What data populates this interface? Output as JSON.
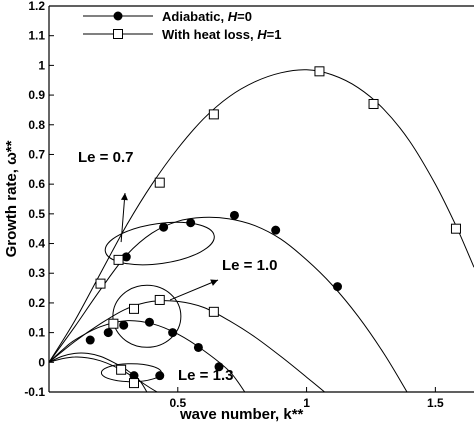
{
  "chart_data": {
    "type": "line",
    "xlabel": "wave number, k**",
    "ylabel": "Growth rate, ω**",
    "xlim": [
      0,
      1.65
    ],
    "ylim": [
      -0.1,
      1.2
    ],
    "xticks": [
      {
        "value": 0.5,
        "label": "0.5"
      },
      {
        "value": 1.0,
        "label": "1"
      },
      {
        "value": 1.5,
        "label": "1.5"
      }
    ],
    "yticks": [
      {
        "value": -0.1,
        "label": "-0.1"
      },
      {
        "value": 0.0,
        "label": "0"
      },
      {
        "value": 0.1,
        "label": "0.1"
      },
      {
        "value": 0.2,
        "label": "0.2"
      },
      {
        "value": 0.3,
        "label": "0.3"
      },
      {
        "value": 0.4,
        "label": "0.4"
      },
      {
        "value": 0.5,
        "label": "0.5"
      },
      {
        "value": 0.6,
        "label": "0.6"
      },
      {
        "value": 0.7,
        "label": "0.7"
      },
      {
        "value": 0.8,
        "label": "0.8"
      },
      {
        "value": 0.9,
        "label": "0.9"
      },
      {
        "value": 1.0,
        "label": "1"
      },
      {
        "value": 1.1,
        "label": "1.1"
      },
      {
        "value": 1.2,
        "label": "1.2"
      }
    ],
    "grid": false,
    "legend": {
      "position": "top-left",
      "entries": [
        {
          "series": "Adiabatic",
          "text": "Adiabatic, ",
          "italic": "H",
          "suffix": "=0",
          "marker": "filled-circle"
        },
        {
          "series": "HeatLoss",
          "text": "With heat loss, ",
          "italic": "H",
          "suffix": "=1",
          "marker": "open-square"
        }
      ]
    },
    "series": [
      {
        "name": "Adiabatic",
        "group": "Le = 0.7",
        "marker": "filled-circle",
        "curve": [
          [
            0,
            0
          ],
          [
            0.1,
            0.12
          ],
          [
            0.2,
            0.245
          ],
          [
            0.3,
            0.36
          ],
          [
            0.4,
            0.435
          ],
          [
            0.5,
            0.475
          ],
          [
            0.6,
            0.488
          ],
          [
            0.7,
            0.483
          ],
          [
            0.8,
            0.46
          ],
          [
            0.9,
            0.415
          ],
          [
            1.0,
            0.345
          ],
          [
            1.1,
            0.26
          ],
          [
            1.2,
            0.155
          ],
          [
            1.3,
            0.03
          ],
          [
            1.39,
            -0.1
          ]
        ],
        "points": [
          [
            0.3,
            0.355
          ],
          [
            0.445,
            0.455
          ],
          [
            0.55,
            0.47
          ],
          [
            0.72,
            0.495
          ],
          [
            0.88,
            0.445
          ],
          [
            1.12,
            0.255
          ]
        ]
      },
      {
        "name": "HeatLoss",
        "group": "Le = 0.7",
        "marker": "open-square",
        "curve": [
          [
            0,
            0
          ],
          [
            0.1,
            0.14
          ],
          [
            0.2,
            0.3
          ],
          [
            0.3,
            0.46
          ],
          [
            0.4,
            0.6
          ],
          [
            0.5,
            0.72
          ],
          [
            0.6,
            0.82
          ],
          [
            0.7,
            0.895
          ],
          [
            0.8,
            0.945
          ],
          [
            0.9,
            0.975
          ],
          [
            1.0,
            0.985
          ],
          [
            1.1,
            0.968
          ],
          [
            1.2,
            0.925
          ],
          [
            1.3,
            0.852
          ],
          [
            1.4,
            0.745
          ],
          [
            1.5,
            0.6
          ],
          [
            1.58,
            0.46
          ],
          [
            1.65,
            0.32
          ]
        ],
        "points": [
          [
            0.2,
            0.265
          ],
          [
            0.27,
            0.345
          ],
          [
            0.43,
            0.605
          ],
          [
            0.64,
            0.835
          ],
          [
            1.05,
            0.98
          ],
          [
            1.26,
            0.87
          ],
          [
            1.58,
            0.45
          ]
        ]
      },
      {
        "name": "Adiabatic",
        "group": "Le = 1.0",
        "marker": "filled-circle",
        "curve": [
          [
            0,
            0
          ],
          [
            0.05,
            0.04
          ],
          [
            0.1,
            0.075
          ],
          [
            0.2,
            0.12
          ],
          [
            0.3,
            0.14
          ],
          [
            0.4,
            0.13
          ],
          [
            0.5,
            0.095
          ],
          [
            0.6,
            0.04
          ],
          [
            0.7,
            -0.03
          ],
          [
            0.76,
            -0.1
          ]
        ],
        "points": [
          [
            0.16,
            0.075
          ],
          [
            0.23,
            0.1
          ],
          [
            0.29,
            0.125
          ],
          [
            0.39,
            0.135
          ],
          [
            0.48,
            0.1
          ],
          [
            0.58,
            0.05
          ],
          [
            0.66,
            -0.015
          ]
        ]
      },
      {
        "name": "HeatLoss",
        "group": "Le = 1.0",
        "marker": "open-square",
        "curve": [
          [
            0,
            0
          ],
          [
            0.1,
            0.07
          ],
          [
            0.2,
            0.13
          ],
          [
            0.3,
            0.18
          ],
          [
            0.4,
            0.205
          ],
          [
            0.5,
            0.205
          ],
          [
            0.6,
            0.185
          ],
          [
            0.7,
            0.14
          ],
          [
            0.8,
            0.085
          ],
          [
            0.9,
            0.02
          ],
          [
            1.0,
            -0.05
          ],
          [
            1.07,
            -0.1
          ]
        ],
        "points": [
          [
            0.25,
            0.13
          ],
          [
            0.33,
            0.18
          ],
          [
            0.43,
            0.21
          ],
          [
            0.64,
            0.17
          ]
        ]
      },
      {
        "name": "Adiabatic",
        "group": "Le = 1.3",
        "marker": "filled-circle",
        "curve": [
          [
            0,
            0
          ],
          [
            0.05,
            0.012
          ],
          [
            0.1,
            0.018
          ],
          [
            0.15,
            0.015
          ],
          [
            0.2,
            0.005
          ],
          [
            0.25,
            -0.012
          ],
          [
            0.3,
            -0.035
          ],
          [
            0.35,
            -0.062
          ],
          [
            0.4,
            -0.09
          ],
          [
            0.42,
            -0.1
          ]
        ],
        "points": [
          [
            0.33,
            -0.045
          ],
          [
            0.43,
            -0.045
          ]
        ]
      },
      {
        "name": "HeatLoss",
        "group": "Le = 1.3",
        "marker": "open-square",
        "curve": [
          [
            0,
            0
          ],
          [
            0.05,
            0.02
          ],
          [
            0.1,
            0.03
          ],
          [
            0.15,
            0.03
          ],
          [
            0.2,
            0.02
          ],
          [
            0.25,
            0.0
          ],
          [
            0.3,
            -0.025
          ],
          [
            0.35,
            -0.06
          ],
          [
            0.38,
            -0.1
          ]
        ],
        "points": [
          [
            0.28,
            -0.025
          ],
          [
            0.33,
            -0.07
          ]
        ]
      }
    ],
    "annotations": [
      {
        "text": "Le = 0.7",
        "arrow": true
      },
      {
        "text": "Le = 1.0",
        "arrow": true
      },
      {
        "text": "Le = 1.3",
        "arrow": false
      }
    ]
  }
}
